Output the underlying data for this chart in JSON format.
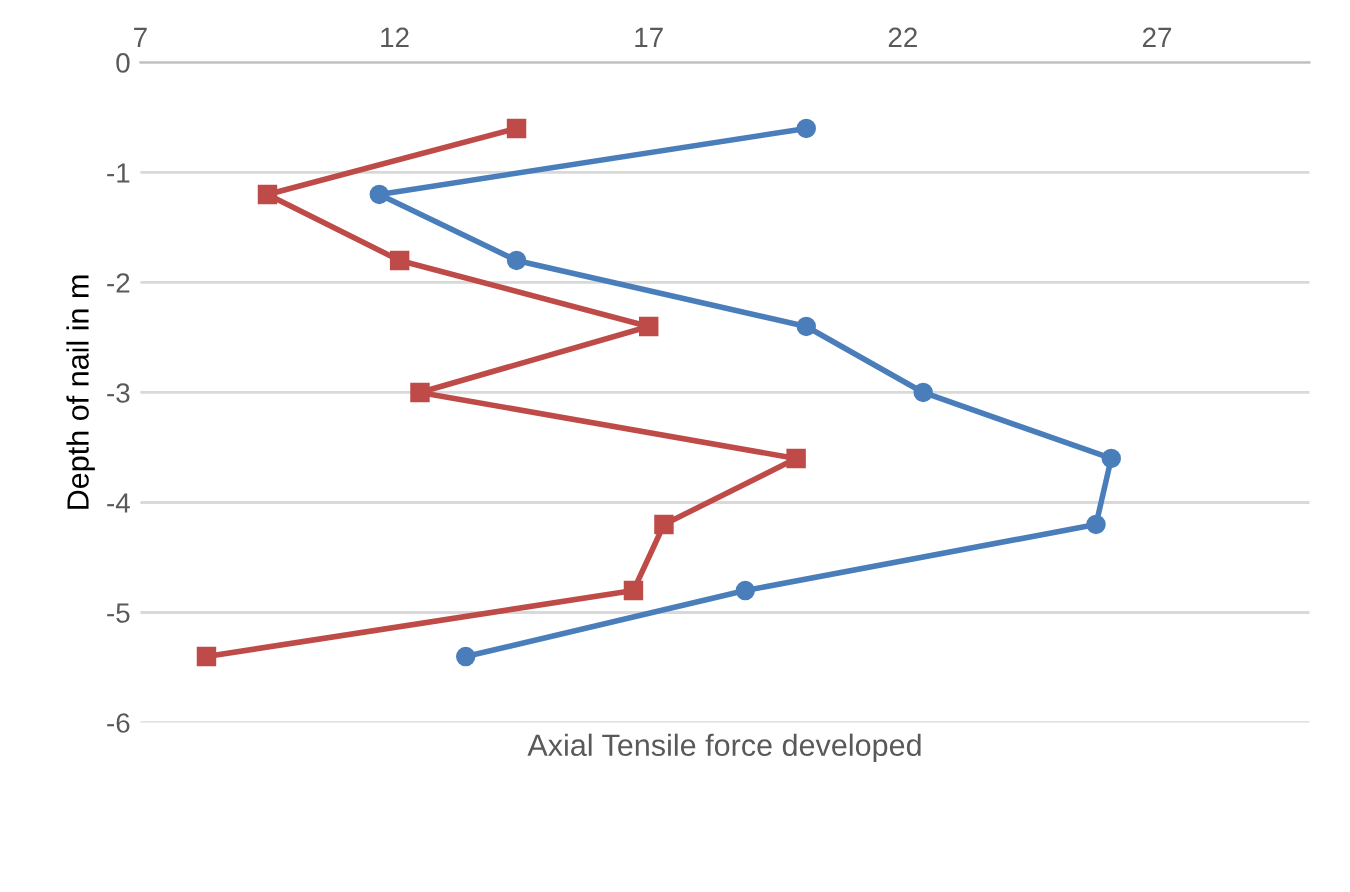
{
  "chart_data": {
    "type": "line",
    "xlabel": "Axial Tensile force developed",
    "ylabel": "Depth of nail in m",
    "xlim": [
      7,
      30
    ],
    "xticks": [
      7,
      12,
      17,
      22,
      27
    ],
    "ylim": [
      -6,
      0
    ],
    "yticks": [
      -6,
      -5,
      -4,
      -3,
      -2,
      -1,
      0
    ],
    "grid": "y",
    "line_style": "solid",
    "series": [
      {
        "color": "#4a7ebb",
        "marker": "circle",
        "x": [
          20.1,
          11.7,
          14.4,
          20.1,
          22.4,
          26.1,
          25.8,
          18.9,
          13.4
        ],
        "values": [
          -0.6,
          -1.2,
          -1.8,
          -2.4,
          -3.0,
          -3.6,
          -4.2,
          -4.8,
          -5.4
        ]
      },
      {
        "color": "#be4b48",
        "marker": "square",
        "x": [
          14.4,
          9.5,
          12.1,
          17.0,
          12.5,
          19.9,
          17.3,
          16.7,
          8.3
        ],
        "values": [
          -0.6,
          -1.2,
          -1.8,
          -2.4,
          -3.0,
          -3.6,
          -4.2,
          -4.8,
          -5.4
        ]
      }
    ]
  }
}
